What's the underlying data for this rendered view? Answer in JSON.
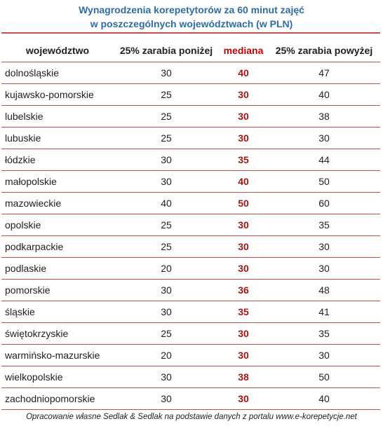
{
  "title": {
    "line1": "Wynagrodzenia korepetytorów za 60 minut zajęć",
    "line2": "w poszczególnych województwach (w PLN)"
  },
  "colors": {
    "title": "#2e6da4",
    "rule": "#c0504d",
    "median": "#c00000"
  },
  "table": {
    "headers": [
      "województwo",
      "25% zarabia poniżej",
      "mediana",
      "25% zarabia powyżej"
    ],
    "rows": [
      [
        "dolnośląskie",
        "30",
        "40",
        "47"
      ],
      [
        "kujawsko-pomorskie",
        "25",
        "30",
        "40"
      ],
      [
        "lubelskie",
        "25",
        "30",
        "38"
      ],
      [
        "lubuskie",
        "25",
        "30",
        "30"
      ],
      [
        "łódzkie",
        "30",
        "35",
        "44"
      ],
      [
        "małopolskie",
        "30",
        "40",
        "50"
      ],
      [
        "mazowieckie",
        "40",
        "50",
        "60"
      ],
      [
        "opolskie",
        "25",
        "30",
        "35"
      ],
      [
        "podkarpackie",
        "25",
        "30",
        "30"
      ],
      [
        "podlaskie",
        "20",
        "30",
        "30"
      ],
      [
        "pomorskie",
        "30",
        "36",
        "48"
      ],
      [
        "śląskie",
        "30",
        "35",
        "41"
      ],
      [
        "świętokrzyskie",
        "25",
        "30",
        "35"
      ],
      [
        "warmińsko-mazurskie",
        "20",
        "30",
        "30"
      ],
      [
        "wielkopolskie",
        "30",
        "38",
        "50"
      ],
      [
        "zachodniopomorskie",
        "30",
        "30",
        "40"
      ]
    ]
  },
  "footer": "Opracowanie własne Sedlak & Sedlak na podstawie danych z portalu www.e-korepetycje.net"
}
